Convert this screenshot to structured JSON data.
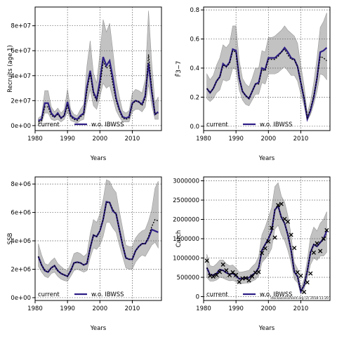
{
  "panels_note": "",
  "chart_data": [
    {
      "type": "line",
      "ylabel": "Recruits (age 1)",
      "xlabel": "Years",
      "xlim": [
        1980,
        2019
      ],
      "ylim": [
        -4000000,
        95000000
      ],
      "xticks": [
        1980,
        1990,
        2000,
        2010
      ],
      "yticks": [
        0,
        20000000,
        40000000,
        60000000,
        80000000
      ],
      "ytick_labels": [
        "0e+00",
        "2e+07",
        "4e+07",
        "6e+07",
        "8e+07"
      ],
      "grid": true,
      "legend": {
        "placement": "bottom-left",
        "entries": [
          "current",
          "w.o. IBWSS"
        ]
      },
      "x": [
        1981,
        1982,
        1983,
        1984,
        1985,
        1986,
        1987,
        1988,
        1989,
        1990,
        1991,
        1992,
        1993,
        1994,
        1995,
        1996,
        1997,
        1998,
        1999,
        2000,
        2001,
        2002,
        2003,
        2004,
        2005,
        2006,
        2007,
        2008,
        2009,
        2010,
        2011,
        2012,
        2013,
        2014,
        2015,
        2016,
        2017,
        2018
      ],
      "series": [
        {
          "name": "current",
          "values": [
            3000000,
            4000000,
            15000000,
            15000000,
            8000000,
            7000000,
            9000000,
            6000000,
            8000000,
            16000000,
            7000000,
            5000000,
            4000000,
            7000000,
            9000000,
            28000000,
            42000000,
            25000000,
            20000000,
            31000000,
            51000000,
            46000000,
            48000000,
            33000000,
            20000000,
            12000000,
            6000000,
            5000000,
            6000000,
            17000000,
            20000000,
            19000000,
            16000000,
            22000000,
            57000000,
            30000000,
            9000000,
            10000000
          ]
        },
        {
          "name": "w.o. IBWSS",
          "values": [
            4000000,
            5000000,
            18000000,
            18000000,
            10000000,
            7000000,
            10000000,
            6000000,
            8000000,
            19000000,
            8000000,
            6000000,
            5000000,
            8000000,
            10000000,
            31000000,
            44000000,
            27000000,
            21000000,
            36000000,
            55000000,
            48000000,
            52000000,
            38000000,
            22000000,
            13000000,
            7000000,
            6000000,
            7000000,
            18000000,
            20000000,
            19000000,
            17000000,
            24000000,
            50000000,
            27000000,
            9000000,
            11000000
          ]
        }
      ],
      "band_upper": [
        6000000,
        8000000,
        28000000,
        28000000,
        15000000,
        11000000,
        14000000,
        10000000,
        13000000,
        29000000,
        13000000,
        9000000,
        8000000,
        13000000,
        17000000,
        48000000,
        68000000,
        42000000,
        34000000,
        58000000,
        85000000,
        75000000,
        82000000,
        60000000,
        36000000,
        23000000,
        12000000,
        10000000,
        12000000,
        26000000,
        29000000,
        28000000,
        26000000,
        37000000,
        92000000,
        50000000,
        18000000,
        23000000
      ],
      "band_lower": [
        1000000,
        2000000,
        10000000,
        10000000,
        5000000,
        4000000,
        5000000,
        3000000,
        5000000,
        11000000,
        4000000,
        3000000,
        2000000,
        4000000,
        5000000,
        18000000,
        29000000,
        16000000,
        13000000,
        23000000,
        34000000,
        30000000,
        32000000,
        22000000,
        12000000,
        7000000,
        3000000,
        3000000,
        3000000,
        11000000,
        13000000,
        13000000,
        11000000,
        15000000,
        33000000,
        16000000,
        5000000,
        5000000
      ]
    },
    {
      "type": "line",
      "ylabel": "F̄3−7",
      "xlabel": "Years",
      "xlim": [
        1980,
        2019
      ],
      "ylim": [
        -0.03,
        0.82
      ],
      "xticks": [
        1980,
        1990,
        2000,
        2010
      ],
      "yticks": [
        0.0,
        0.2,
        0.4,
        0.6,
        0.8
      ],
      "ytick_labels": [
        "0.0",
        "0.2",
        "0.4",
        "0.6",
        "0.8"
      ],
      "grid": true,
      "legend": {
        "placement": "bottom-left",
        "entries": [
          "current",
          "w.o. IBWSS"
        ]
      },
      "x": [
        1981,
        1982,
        1983,
        1984,
        1985,
        1986,
        1987,
        1988,
        1989,
        1990,
        1991,
        1992,
        1993,
        1994,
        1995,
        1996,
        1997,
        1998,
        1999,
        2000,
        2001,
        2002,
        2003,
        2004,
        2005,
        2006,
        2007,
        2008,
        2009,
        2010,
        2011,
        2012,
        2013,
        2014,
        2015,
        2016,
        2017,
        2018
      ],
      "series": [
        {
          "name": "current",
          "values": [
            0.26,
            0.23,
            0.26,
            0.31,
            0.34,
            0.42,
            0.41,
            0.43,
            0.52,
            0.51,
            0.33,
            0.24,
            0.21,
            0.19,
            0.24,
            0.29,
            0.29,
            0.39,
            0.38,
            0.46,
            0.46,
            0.46,
            0.48,
            0.51,
            0.53,
            0.49,
            0.46,
            0.46,
            0.41,
            0.3,
            0.2,
            0.06,
            0.12,
            0.21,
            0.33,
            0.48,
            0.47,
            0.45
          ]
        },
        {
          "name": "w.o. IBWSS",
          "values": [
            0.26,
            0.23,
            0.26,
            0.31,
            0.34,
            0.43,
            0.41,
            0.44,
            0.53,
            0.52,
            0.33,
            0.24,
            0.21,
            0.19,
            0.24,
            0.29,
            0.3,
            0.4,
            0.39,
            0.47,
            0.47,
            0.47,
            0.49,
            0.51,
            0.54,
            0.51,
            0.47,
            0.46,
            0.41,
            0.3,
            0.19,
            0.05,
            0.11,
            0.2,
            0.33,
            0.51,
            0.52,
            0.54
          ]
        }
      ],
      "band_upper": [
        0.36,
        0.32,
        0.35,
        0.42,
        0.47,
        0.56,
        0.54,
        0.57,
        0.69,
        0.69,
        0.45,
        0.33,
        0.29,
        0.27,
        0.33,
        0.4,
        0.4,
        0.52,
        0.51,
        0.61,
        0.61,
        0.62,
        0.64,
        0.66,
        0.69,
        0.66,
        0.64,
        0.62,
        0.57,
        0.42,
        0.28,
        0.09,
        0.17,
        0.3,
        0.47,
        0.68,
        0.72,
        0.78
      ],
      "band_lower": [
        0.19,
        0.17,
        0.19,
        0.23,
        0.25,
        0.32,
        0.31,
        0.32,
        0.4,
        0.39,
        0.25,
        0.18,
        0.15,
        0.14,
        0.18,
        0.22,
        0.22,
        0.3,
        0.29,
        0.36,
        0.36,
        0.36,
        0.37,
        0.39,
        0.41,
        0.38,
        0.35,
        0.35,
        0.31,
        0.22,
        0.14,
        0.04,
        0.08,
        0.15,
        0.24,
        0.36,
        0.35,
        0.32
      ]
    },
    {
      "type": "line",
      "ylabel": "SSB",
      "xlabel": "Years",
      "xlim": [
        1980,
        2019
      ],
      "ylim": [
        -200000,
        8500000
      ],
      "xticks": [
        1980,
        1990,
        2000,
        2010
      ],
      "yticks": [
        0,
        2000000,
        4000000,
        6000000,
        8000000
      ],
      "ytick_labels": [
        "0e+00",
        "2e+06",
        "4e+06",
        "6e+06",
        "8e+06"
      ],
      "grid": true,
      "legend": {
        "placement": "bottom-left",
        "entries": [
          "current",
          "w.o. IBWSS"
        ]
      },
      "x": [
        1981,
        1982,
        1983,
        1984,
        1985,
        1986,
        1987,
        1988,
        1989,
        1990,
        1991,
        1992,
        1993,
        1994,
        1995,
        1996,
        1997,
        1998,
        1999,
        2000,
        2001,
        2002,
        2003,
        2004,
        2005,
        2006,
        2007,
        2008,
        2009,
        2010,
        2011,
        2012,
        2013,
        2014,
        2015,
        2016,
        2017,
        2018
      ],
      "series": [
        {
          "name": "current",
          "values": [
            2900000,
            2300000,
            1900000,
            1800000,
            2100000,
            2250000,
            1900000,
            1700000,
            1600000,
            1500000,
            1900000,
            2450000,
            2500000,
            2450000,
            2300000,
            2400000,
            3500000,
            4400000,
            4300000,
            4700000,
            5500000,
            6700000,
            6700000,
            6200000,
            5900000,
            4800000,
            3800000,
            2800000,
            2700000,
            2700000,
            3300000,
            3600000,
            3800000,
            3800000,
            4300000,
            5000000,
            5500000,
            5400000
          ]
        },
        {
          "name": "w.o. IBWSS",
          "values": [
            2900000,
            2300000,
            1900000,
            1800000,
            2100000,
            2250000,
            1900000,
            1700000,
            1600000,
            1500000,
            1900000,
            2450000,
            2500000,
            2450000,
            2300000,
            2400000,
            3500000,
            4400000,
            4300000,
            4700000,
            5500000,
            6750000,
            6700000,
            6100000,
            5900000,
            4800000,
            3700000,
            2800000,
            2700000,
            2700000,
            3300000,
            3600000,
            3800000,
            3800000,
            4200000,
            4800000,
            4700000,
            4600000
          ]
        }
      ],
      "band_upper": [
        3800000,
        3000000,
        2400000,
        2300000,
        2600000,
        2800000,
        2400000,
        2200000,
        2000000,
        1900000,
        2400000,
        3100000,
        3200000,
        3100000,
        2900000,
        3100000,
        4500000,
        5500000,
        5300000,
        5900000,
        6900000,
        8300000,
        8200000,
        7700000,
        7400000,
        6100000,
        4900000,
        3700000,
        3600000,
        3600000,
        4200000,
        4500000,
        4700000,
        4800000,
        5400000,
        6200000,
        7700000,
        8200000
      ],
      "band_lower": [
        2200000,
        1800000,
        1500000,
        1400000,
        1700000,
        1800000,
        1500000,
        1300000,
        1200000,
        1150000,
        1500000,
        1900000,
        2000000,
        1900000,
        1800000,
        1900000,
        2800000,
        3500000,
        3400000,
        3700000,
        4300000,
        5300000,
        5300000,
        4900000,
        4600000,
        3700000,
        2900000,
        2100000,
        2000000,
        2000000,
        2500000,
        2800000,
        3000000,
        2900000,
        3300000,
        3700000,
        3900000,
        3500000
      ]
    },
    {
      "type": "line",
      "ylabel": "Catch",
      "xlabel": "Years",
      "xlim": [
        1980,
        2019
      ],
      "ylim": [
        -100000,
        3100000
      ],
      "xticks": [
        1980,
        1990,
        2000,
        2010
      ],
      "yticks": [
        0,
        500000,
        1000000,
        1500000,
        2000000,
        2500000,
        3000000
      ],
      "ytick_labels": [
        "0",
        "500000",
        "1000000",
        "1500000",
        "2000000",
        "2500000",
        "3000000"
      ],
      "grid": true,
      "legend": {
        "placement": "bottom-left",
        "entries": [
          "current",
          "w.o. IBWSS"
        ]
      },
      "annotation": "stockassessment.org (2)  2018-11-20",
      "x": [
        1981,
        1982,
        1983,
        1984,
        1985,
        1986,
        1987,
        1988,
        1989,
        1990,
        1991,
        1992,
        1993,
        1994,
        1995,
        1996,
        1997,
        1998,
        1999,
        2000,
        2001,
        2002,
        2003,
        2004,
        2005,
        2006,
        2007,
        2008,
        2009,
        2010,
        2011,
        2012,
        2013,
        2014,
        2015,
        2016,
        2017,
        2018
      ],
      "series": [
        {
          "name": "current",
          "values": [
            750000,
            560000,
            560000,
            600000,
            700000,
            680000,
            620000,
            580000,
            600000,
            540000,
            460000,
            470000,
            480000,
            490000,
            560000,
            620000,
            750000,
            1200000,
            1350000,
            1500000,
            1700000,
            2250000,
            2350000,
            2050000,
            1900000,
            1600000,
            1200000,
            640000,
            520000,
            140000,
            300000,
            680000,
            1150000,
            1350000,
            1300000,
            1420000,
            1450000,
            1600000
          ]
        },
        {
          "name": "w.o. IBWSS",
          "values": [
            750000,
            560000,
            560000,
            600000,
            700000,
            680000,
            620000,
            580000,
            600000,
            540000,
            460000,
            470000,
            480000,
            490000,
            560000,
            620000,
            750000,
            1200000,
            1350000,
            1500000,
            1700000,
            2250000,
            2350000,
            2050000,
            1900000,
            1600000,
            1200000,
            640000,
            520000,
            130000,
            290000,
            660000,
            1150000,
            1350000,
            1300000,
            1400000,
            1500000,
            1700000
          ]
        }
      ],
      "band_upper": [
        1100000,
        800000,
        780000,
        850000,
        950000,
        950000,
        850000,
        800000,
        820000,
        740000,
        630000,
        640000,
        660000,
        680000,
        780000,
        860000,
        1040000,
        1600000,
        1800000,
        2050000,
        2300000,
        2850000,
        2950000,
        2600000,
        2450000,
        2100000,
        1600000,
        880000,
        720000,
        220000,
        450000,
        950000,
        1550000,
        1800000,
        1700000,
        1900000,
        2000000,
        2200000
      ],
      "band_lower": [
        500000,
        400000,
        400000,
        430000,
        500000,
        480000,
        440000,
        410000,
        420000,
        390000,
        330000,
        340000,
        350000,
        350000,
        400000,
        440000,
        540000,
        880000,
        980000,
        1080000,
        1250000,
        1750000,
        1850000,
        1600000,
        1450000,
        1200000,
        880000,
        450000,
        360000,
        70000,
        180000,
        470000,
        830000,
        1000000,
        940000,
        1050000,
        1050000,
        1150000
      ],
      "observed": {
        "x": [
          1981,
          1982,
          1983,
          1984,
          1985,
          1986,
          1987,
          1988,
          1989,
          1990,
          1991,
          1992,
          1993,
          1994,
          1995,
          1996,
          1997,
          1998,
          1999,
          2000,
          2001,
          2002,
          2003,
          2004,
          2005,
          2006,
          2007,
          2008,
          2009,
          2010,
          2011,
          2012,
          2013,
          2014,
          2015,
          2016,
          2017,
          2018
        ],
        "values": [
          930000,
          540000,
          520000,
          560000,
          640000,
          830000,
          680000,
          560000,
          630000,
          560000,
          380000,
          470000,
          480000,
          420000,
          520000,
          620000,
          640000,
          1130000,
          1250000,
          1430000,
          1780000,
          1530000,
          2370000,
          2400000,
          2010000,
          1940000,
          1600000,
          1260000,
          630000,
          540000,
          120000,
          370000,
          600000,
          1140000,
          1380000,
          1180000,
          1500000,
          1720000
        ]
      }
    }
  ]
}
